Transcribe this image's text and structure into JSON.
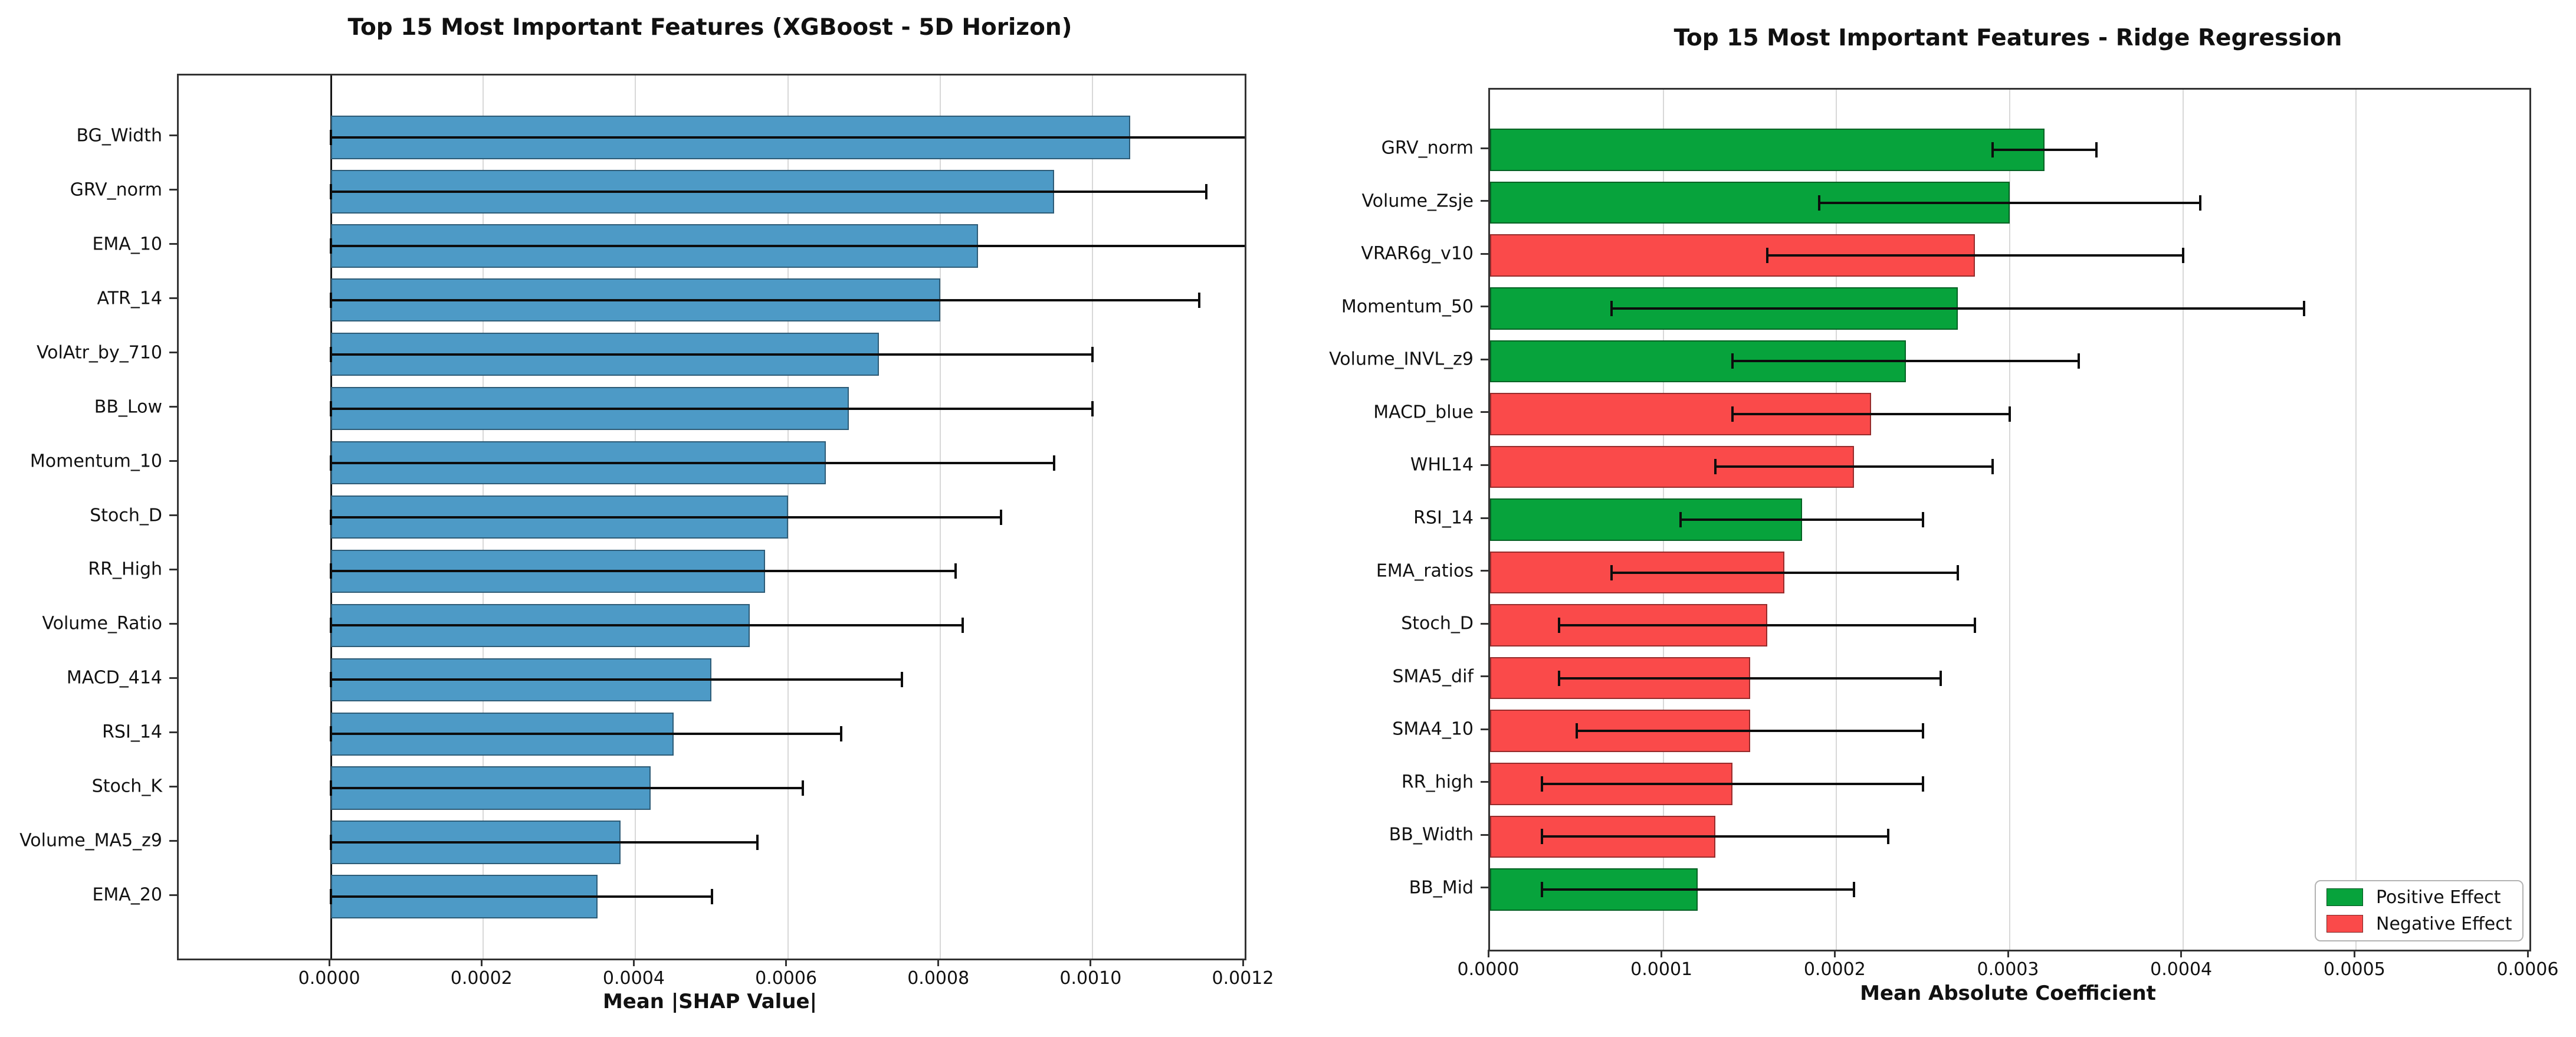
{
  "chart_data": [
    {
      "type": "bar",
      "orientation": "horizontal",
      "title": "Top 15 Most Important Features (XGBoost - 5D Horizon)",
      "xlabel": "Mean |SHAP Value|",
      "bar_color": "#4D9AC6",
      "error_color": "#0d0d0d",
      "grid": true,
      "xlim": [
        -0.0002,
        0.0012
      ],
      "xticks": [
        0.0,
        0.0002,
        0.0004,
        0.0006,
        0.0008,
        0.001,
        0.0012
      ],
      "xtick_labels": [
        "0.0000",
        "0.0002",
        "0.0004",
        "0.0006",
        "0.0008",
        "0.0010",
        "0.0012"
      ],
      "features": [
        "BG_Width",
        "GRV_norm",
        "EMA_10",
        "ATR_14",
        "VolAtr_by_710",
        "BB_Low",
        "Momentum_10",
        "Stoch_D",
        "RR_High",
        "Volume_Ratio",
        "MACD_414",
        "RSI_14",
        "Stoch_K",
        "Volume_MA5_z9",
        "EMA_20"
      ],
      "values": [
        0.00105,
        0.00095,
        0.00085,
        0.0008,
        0.00072,
        0.00068,
        0.00065,
        0.0006,
        0.00057,
        0.00055,
        0.0005,
        0.00045,
        0.00042,
        0.00038,
        0.00035
      ],
      "err_low": [
        0.0,
        0.0,
        0.0,
        0.0,
        0.0,
        0.0,
        0.0,
        0.0,
        0.0,
        0.0,
        0.0,
        0.0,
        0.0,
        0.0,
        0.0
      ],
      "err_high": [
        0.00128,
        0.00115,
        0.00128,
        0.00114,
        0.001,
        0.001,
        0.00095,
        0.00088,
        0.00082,
        0.00083,
        0.00075,
        0.00067,
        0.00062,
        0.00056,
        0.0005
      ]
    },
    {
      "type": "bar",
      "orientation": "horizontal",
      "title": "Top 15 Most Important Features - Ridge Regression",
      "xlabel": "Mean Absolute Coefficient",
      "colors": {
        "positive": "#07A33C",
        "negative": "#FA4A4A"
      },
      "error_color": "#0d0d0d",
      "grid": true,
      "xlim": [
        0.0,
        0.0006
      ],
      "xticks": [
        0.0,
        0.0001,
        0.0002,
        0.0003,
        0.0004,
        0.0005,
        0.0006
      ],
      "xtick_labels": [
        "0.0000",
        "0.0001",
        "0.0002",
        "0.0003",
        "0.0004",
        "0.0005",
        "0.0006"
      ],
      "features": [
        "GRV_norm",
        "Volume_Zsje",
        "VRAR6g_v10",
        "Momentum_50",
        "Volume_INVL_z9",
        "MACD_blue",
        "WHL14",
        "RSI_14",
        "EMA_ratios",
        "Stoch_D",
        "SMA5_dif",
        "SMA4_10",
        "RR_high",
        "BB_Width",
        "BB_Mid"
      ],
      "values": [
        0.00032,
        0.0003,
        0.00028,
        0.00027,
        0.00024,
        0.00022,
        0.00021,
        0.00018,
        0.00017,
        0.00016,
        0.00015,
        0.00015,
        0.00014,
        0.00013,
        0.00012
      ],
      "effects": [
        "positive",
        "positive",
        "negative",
        "positive",
        "positive",
        "negative",
        "negative",
        "positive",
        "negative",
        "negative",
        "negative",
        "negative",
        "negative",
        "negative",
        "positive"
      ],
      "err_low": [
        0.00029,
        0.00019,
        0.00016,
        7e-05,
        0.00014,
        0.00014,
        0.00013,
        0.00011,
        7e-05,
        4e-05,
        4e-05,
        5e-05,
        3e-05,
        3e-05,
        3e-05
      ],
      "err_high": [
        0.00035,
        0.00041,
        0.0004,
        0.00047,
        0.00034,
        0.0003,
        0.00029,
        0.00025,
        0.00027,
        0.00028,
        0.00026,
        0.00025,
        0.00025,
        0.00023,
        0.00021
      ],
      "legend": {
        "position": "lower right",
        "entries": [
          {
            "label": "Positive Effect",
            "color": "#07A33C"
          },
          {
            "label": "Negative Effect",
            "color": "#FA4A4A"
          }
        ]
      }
    }
  ]
}
